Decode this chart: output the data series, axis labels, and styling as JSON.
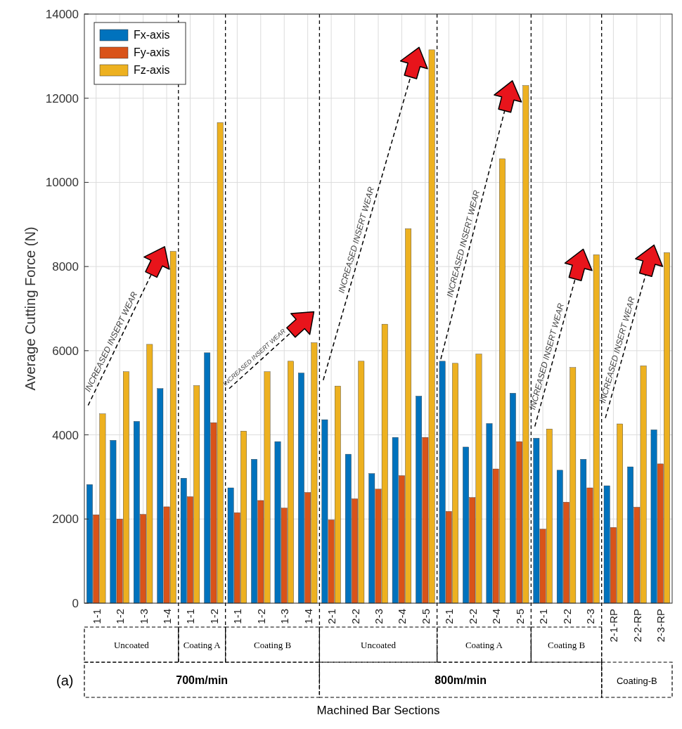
{
  "chart_data": {
    "type": "bar",
    "ylabel": "Average Cutting Force (N)",
    "categories": [
      "1-1",
      "1-2",
      "1-3",
      "1-4",
      "1-1",
      "1-2",
      "1-1",
      "1-2",
      "1-3",
      "1-4",
      "2-1",
      "2-2",
      "2-3",
      "2-4",
      "2-5",
      "2-1",
      "2-2",
      "2-4",
      "2-5",
      "2-1",
      "2-2",
      "2-3",
      "2-1-RP",
      "2-2-RP",
      "2-3-RP"
    ],
    "series": [
      {
        "name": "Fx-axis",
        "color": "#0072bd",
        "values": [
          2820,
          3870,
          4320,
          5100,
          2970,
          5950,
          2740,
          3420,
          3840,
          5470,
          4360,
          3540,
          3080,
          3940,
          4920,
          5750,
          3710,
          4270,
          4990,
          3920,
          3160,
          3420,
          2790,
          3240,
          4120
        ]
      },
      {
        "name": "Fy-axis",
        "color": "#d95319",
        "values": [
          2100,
          2000,
          2110,
          2290,
          2530,
          4290,
          2150,
          2440,
          2260,
          2630,
          1980,
          2480,
          2710,
          3030,
          3940,
          2180,
          2510,
          3190,
          3840,
          1760,
          2400,
          2740,
          1800,
          2280,
          3310
        ]
      },
      {
        "name": "Fz-axis",
        "color": "#edb120",
        "values": [
          4500,
          5500,
          6150,
          8360,
          5170,
          11420,
          4090,
          5500,
          5750,
          6190,
          5160,
          5750,
          6630,
          8900,
          13150,
          5700,
          5920,
          10560,
          12300,
          4140,
          5600,
          8280,
          4260,
          5640,
          8330
        ]
      }
    ],
    "ylim": [
      0,
      14000
    ],
    "yticks": [
      0,
      2000,
      4000,
      6000,
      8000,
      10000,
      12000,
      14000
    ],
    "grid": true,
    "legend": "top left",
    "annotations": [
      "Uncoated",
      "Coating A",
      "Coating B",
      "Uncoated",
      "Coating A",
      "Coating B",
      "700m/min",
      "800m/min",
      "Coating-B",
      "(a)",
      "INCREASED INSERT WEAR",
      "INCREASED INSERT WEAR",
      "INCREASED INSERT WEAR",
      "INCREASED INSERT WEAR",
      "INCREASED INSERT WEAR",
      "INCREASED INSERT WEAR",
      "Machined Bar Sections"
    ]
  }
}
